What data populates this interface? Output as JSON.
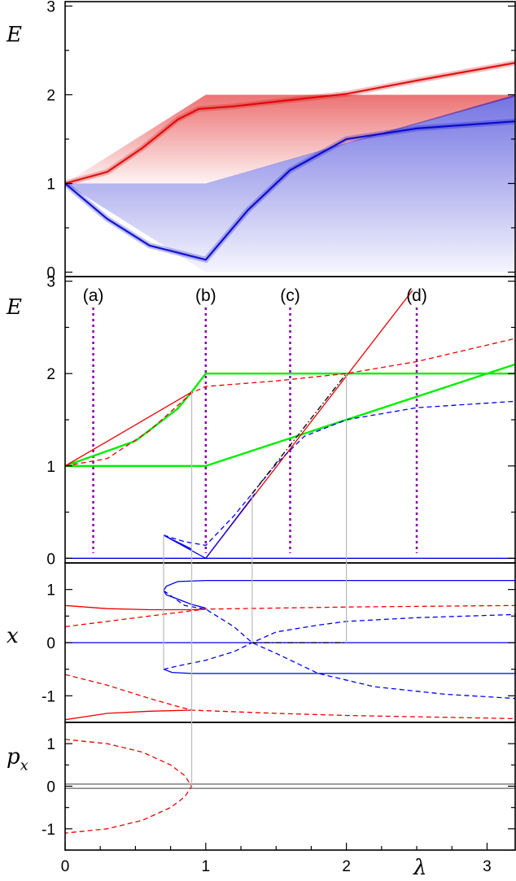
{
  "chart_data": {
    "type": "line",
    "x_label": "λ",
    "x_ticks": [
      "0",
      "1",
      "2",
      "3"
    ],
    "xlim": [
      0,
      3.2
    ],
    "panels": [
      {
        "name": "spectrum",
        "ylabel": "E",
        "ylim": [
          -0.05,
          3.05
        ],
        "y_ticks": [
          "0",
          "1",
          "2",
          "3"
        ],
        "bands": [
          {
            "color": "#dd0000",
            "edge_x": [
              0,
              1,
              3.2
            ],
            "upper": [
              1,
              2,
              2
            ],
            "lower": [
              1,
              1,
              1.98
            ],
            "ridge": [
              [
                0,
                1
              ],
              [
                0.3,
                1.13
              ],
              [
                0.55,
                1.4
              ],
              [
                0.8,
                1.72
              ],
              [
                0.95,
                1.84
              ],
              [
                1.2,
                1.87
              ],
              [
                1.6,
                1.94
              ],
              [
                2,
                2.01
              ],
              [
                2.5,
                2.16
              ],
              [
                3.2,
                2.36
              ]
            ]
          },
          {
            "color": "#0000cc",
            "edge_x": [
              0,
              1,
              3.2
            ],
            "upper": [
              1,
              1,
              2.0
            ],
            "lower": [
              1,
              0,
              0
            ],
            "ridge": [
              [
                0,
                1
              ],
              [
                0.3,
                0.6
              ],
              [
                0.6,
                0.3
              ],
              [
                1,
                0.14
              ],
              [
                1.3,
                0.7
              ],
              [
                1.6,
                1.15
              ],
              [
                2,
                1.5
              ],
              [
                2.5,
                1.62
              ],
              [
                3.2,
                1.7
              ]
            ]
          }
        ]
      },
      {
        "name": "energies",
        "ylabel": "E",
        "ylim": [
          -0.05,
          3.05
        ],
        "y_ticks": [
          "0",
          "1",
          "2",
          "3"
        ],
        "markers": [
          {
            "label": "(a)",
            "x": 0.2
          },
          {
            "label": "(b)",
            "x": 1.0
          },
          {
            "label": "(c)",
            "x": 1.6
          },
          {
            "label": "(d)",
            "x": 2.5
          }
        ],
        "series": [
          {
            "color": "#00ee00",
            "dash": false,
            "points": [
              [
                0,
                1
              ],
              [
                1,
                1
              ],
              [
                3.2,
                2.1
              ]
            ]
          },
          {
            "color": "#00ee00",
            "dash": false,
            "points": [
              [
                0,
                1
              ],
              [
                0.5,
                1.27
              ],
              [
                0.8,
                1.62
              ],
              [
                0.9,
                1.8
              ],
              [
                1,
                2
              ],
              [
                3.2,
                2
              ]
            ]
          },
          {
            "color": "#ee0000",
            "dash": false,
            "points": [
              [
                0,
                1
              ],
              [
                0.9,
                1.8
              ]
            ]
          },
          {
            "color": "#ee0000",
            "dash": false,
            "points": [
              [
                1,
                0
              ],
              [
                2.47,
                2.9
              ]
            ]
          },
          {
            "color": "#ee0000",
            "dash": true,
            "points": [
              [
                0,
                1
              ],
              [
                0.3,
                1.08
              ],
              [
                0.6,
                1.38
              ],
              [
                0.9,
                1.79
              ],
              [
                1,
                1.86
              ],
              [
                1.5,
                1.92
              ],
              [
                2,
                2
              ],
              [
                2.5,
                2.13
              ],
              [
                3.2,
                2.38
              ]
            ]
          },
          {
            "color": "#0000ee",
            "dash": false,
            "points": [
              [
                0.7,
                0.25
              ],
              [
                1,
                0
              ],
              [
                1.35,
                0.7
              ]
            ]
          },
          {
            "color": "#0000ee",
            "dash": false,
            "points": [
              [
                0.7,
                0.25
              ],
              [
                0.9,
                0.1
              ]
            ]
          },
          {
            "color": "#0000ee",
            "dash": true,
            "points": [
              [
                0.7,
                0.25
              ],
              [
                0.85,
                0.18
              ],
              [
                1,
                0.14
              ],
              [
                1.2,
                0.46
              ],
              [
                1.33,
                0.7
              ],
              [
                1.5,
                1.02
              ],
              [
                1.7,
                1.32
              ],
              [
                2,
                1.5
              ],
              [
                2.5,
                1.63
              ],
              [
                3.2,
                1.7
              ]
            ]
          },
          {
            "color": "#0000ee",
            "dash": false,
            "points": [
              [
                0,
                0
              ],
              [
                3.2,
                0
              ]
            ]
          },
          {
            "color": "#000000",
            "dash": "dashdot",
            "points": [
              [
                1.33,
                0.7
              ],
              [
                2,
                2
              ]
            ]
          }
        ]
      },
      {
        "name": "position",
        "ylabel": "x",
        "ylim": [
          -1.5,
          1.5
        ],
        "y_ticks": [
          "1",
          "0",
          "-1"
        ],
        "series": [
          {
            "color": "#0000ee",
            "dash": false,
            "points": [
              [
                1,
                1.17
              ],
              [
                3.2,
                1.17
              ]
            ]
          },
          {
            "color": "#0000ee",
            "dash": false,
            "points": [
              [
                1,
                1.17
              ],
              [
                0.8,
                1.15
              ],
              [
                0.72,
                1.06
              ],
              [
                0.7,
                0.98
              ],
              [
                0.72,
                0.9
              ],
              [
                0.8,
                0.82
              ],
              [
                0.9,
                0.72
              ],
              [
                1,
                0.65
              ]
            ]
          },
          {
            "color": "#0000ee",
            "dash": false,
            "points": [
              [
                0,
                0
              ],
              [
                3.2,
                0
              ]
            ]
          },
          {
            "color": "#0000ee",
            "dash": false,
            "points": [
              [
                0.7,
                -0.5
              ],
              [
                0.76,
                -0.56
              ],
              [
                0.9,
                -0.58
              ],
              [
                3.2,
                -0.58
              ]
            ]
          },
          {
            "color": "#0000ee",
            "dash": true,
            "points": [
              [
                0.7,
                -0.5
              ],
              [
                0.8,
                -0.44
              ],
              [
                1,
                -0.33
              ],
              [
                1.2,
                -0.17
              ],
              [
                1.33,
                0
              ],
              [
                1.5,
                0.2
              ],
              [
                1.8,
                0.33
              ],
              [
                2,
                0.4
              ],
              [
                2.5,
                0.47
              ],
              [
                3.2,
                0.53
              ]
            ]
          },
          {
            "color": "#0000ee",
            "dash": true,
            "points": [
              [
                0.7,
                0.98
              ],
              [
                0.85,
                0.7
              ],
              [
                1,
                0.63
              ],
              [
                1.2,
                0.3
              ],
              [
                1.33,
                0
              ],
              [
                1.5,
                -0.2
              ],
              [
                1.8,
                -0.58
              ],
              [
                2.2,
                -0.83
              ],
              [
                2.7,
                -0.97
              ],
              [
                3.2,
                -1.05
              ]
            ]
          },
          {
            "color": "#ee0000",
            "dash": false,
            "points": [
              [
                0,
                0.7
              ],
              [
                0.3,
                0.64
              ],
              [
                0.6,
                0.62
              ],
              [
                0.9,
                0.62
              ],
              [
                1,
                0.63
              ]
            ]
          },
          {
            "color": "#ee0000",
            "dash": true,
            "points": [
              [
                0,
                0.3
              ],
              [
                0.3,
                0.4
              ],
              [
                0.6,
                0.5
              ],
              [
                0.9,
                0.6
              ],
              [
                1,
                0.63
              ],
              [
                1.5,
                0.65
              ],
              [
                2,
                0.67
              ],
              [
                3.2,
                0.7
              ]
            ]
          },
          {
            "color": "#ee0000",
            "dash": true,
            "points": [
              [
                0,
                -0.6
              ],
              [
                0.3,
                -0.8
              ],
              [
                0.6,
                -1.05
              ],
              [
                0.8,
                -1.2
              ],
              [
                0.9,
                -1.27
              ],
              [
                1.5,
                -1.33
              ],
              [
                2,
                -1.37
              ],
              [
                3.2,
                -1.43
              ]
            ]
          },
          {
            "color": "#ee0000",
            "dash": false,
            "points": [
              [
                0,
                -1.45
              ],
              [
                0.3,
                -1.33
              ],
              [
                0.6,
                -1.29
              ],
              [
                0.9,
                -1.27
              ]
            ]
          },
          {
            "color": "#000000",
            "dash": "dashdot",
            "points": [
              [
                1.33,
                0
              ],
              [
                2,
                0
              ]
            ]
          }
        ]
      },
      {
        "name": "momentum",
        "ylabel": "p_x",
        "ylim": [
          -1.5,
          1.5
        ],
        "y_ticks": [
          "1",
          "0",
          "-1"
        ],
        "series": [
          {
            "color": "#666666",
            "dash": false,
            "points": [
              [
                0,
                0.05
              ],
              [
                3.2,
                0.05
              ]
            ]
          },
          {
            "color": "#666666",
            "dash": false,
            "points": [
              [
                0,
                -0.05
              ],
              [
                3.2,
                -0.05
              ]
            ]
          },
          {
            "color": "#ee0000",
            "dash": true,
            "points": [
              [
                0,
                1.1
              ],
              [
                0.3,
                1
              ],
              [
                0.55,
                0.8
              ],
              [
                0.75,
                0.5
              ],
              [
                0.85,
                0.25
              ],
              [
                0.9,
                0
              ],
              [
                0.85,
                -0.25
              ],
              [
                0.75,
                -0.5
              ],
              [
                0.55,
                -0.8
              ],
              [
                0.3,
                -1
              ],
              [
                0,
                -1.1
              ]
            ]
          }
        ]
      }
    ],
    "connectors": [
      0.7,
      0.9,
      1.33,
      2.0
    ]
  }
}
